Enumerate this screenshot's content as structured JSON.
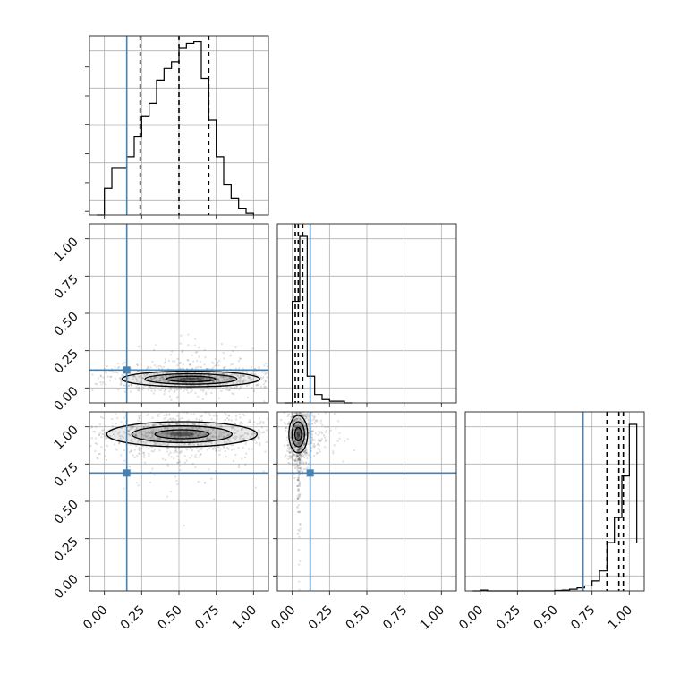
{
  "chart_data": {
    "type": "corner",
    "parameters": 3,
    "tick_labels": [
      "0.00",
      "0.25",
      "0.50",
      "0.75",
      "1.00"
    ],
    "ticks": [
      0,
      0.25,
      0.5,
      0.75,
      1.0
    ],
    "xlim": [
      -0.1,
      1.1
    ],
    "ylim": [
      -0.1,
      1.1
    ],
    "grid": true,
    "truths": [
      0.15,
      0.12,
      0.69
    ],
    "quantiles": [
      [
        0.24,
        0.5,
        0.7
      ],
      [
        0.02,
        0.04,
        0.07
      ],
      [
        0.85,
        0.93,
        0.96
      ]
    ],
    "histograms": [
      {
        "bin_edges": [
          -0.05,
          0.0,
          0.05,
          0.1,
          0.15,
          0.2,
          0.25,
          0.3,
          0.35,
          0.4,
          0.45,
          0.5,
          0.55,
          0.6,
          0.65,
          0.7,
          0.75,
          0.8,
          0.85,
          0.9,
          0.95,
          1.0
        ],
        "counts": [
          0.0,
          0.16,
          0.28,
          0.28,
          0.35,
          0.47,
          0.59,
          0.67,
          0.81,
          0.88,
          0.92,
          1.0,
          1.03,
          1.04,
          0.82,
          0.57,
          0.35,
          0.18,
          0.1,
          0.04,
          0.01
        ]
      },
      {
        "bin_edges": [
          -0.05,
          0.0,
          0.05,
          0.1,
          0.15,
          0.2,
          0.25,
          0.3,
          0.35,
          0.4
        ],
        "counts": [
          0.0,
          0.61,
          1.0,
          0.16,
          0.05,
          0.02,
          0.01,
          0.01,
          0.0
        ]
      },
      {
        "bin_edges": [
          -0.05,
          0.0,
          0.05,
          0.1,
          0.15,
          0.2,
          0.25,
          0.3,
          0.35,
          0.4,
          0.45,
          0.5,
          0.55,
          0.6,
          0.65,
          0.7,
          0.75,
          0.8,
          0.85,
          0.9,
          0.95,
          1.0,
          1.05
        ],
        "counts": [
          0.0,
          0.005,
          0.0,
          0.0,
          0.0,
          0.0,
          0.0,
          0.0,
          0.0,
          0.0,
          0.0,
          0.003,
          0.005,
          0.01,
          0.018,
          0.03,
          0.06,
          0.12,
          0.29,
          0.44,
          0.69,
          1.0,
          0.29
        ]
      }
    ],
    "panels": [
      {
        "row": 1,
        "col": 0,
        "x_param": 0,
        "y_param": 1,
        "center": [
          0.58,
          0.06
        ],
        "spread": [
          0.22,
          0.025
        ]
      },
      {
        "row": 2,
        "col": 0,
        "x_param": 0,
        "y_param": 2,
        "center": [
          0.52,
          0.95
        ],
        "spread": [
          0.24,
          0.04
        ]
      },
      {
        "row": 2,
        "col": 1,
        "x_param": 1,
        "y_param": 2,
        "center": [
          0.04,
          0.95
        ],
        "spread": [
          0.03,
          0.06
        ]
      }
    ]
  }
}
